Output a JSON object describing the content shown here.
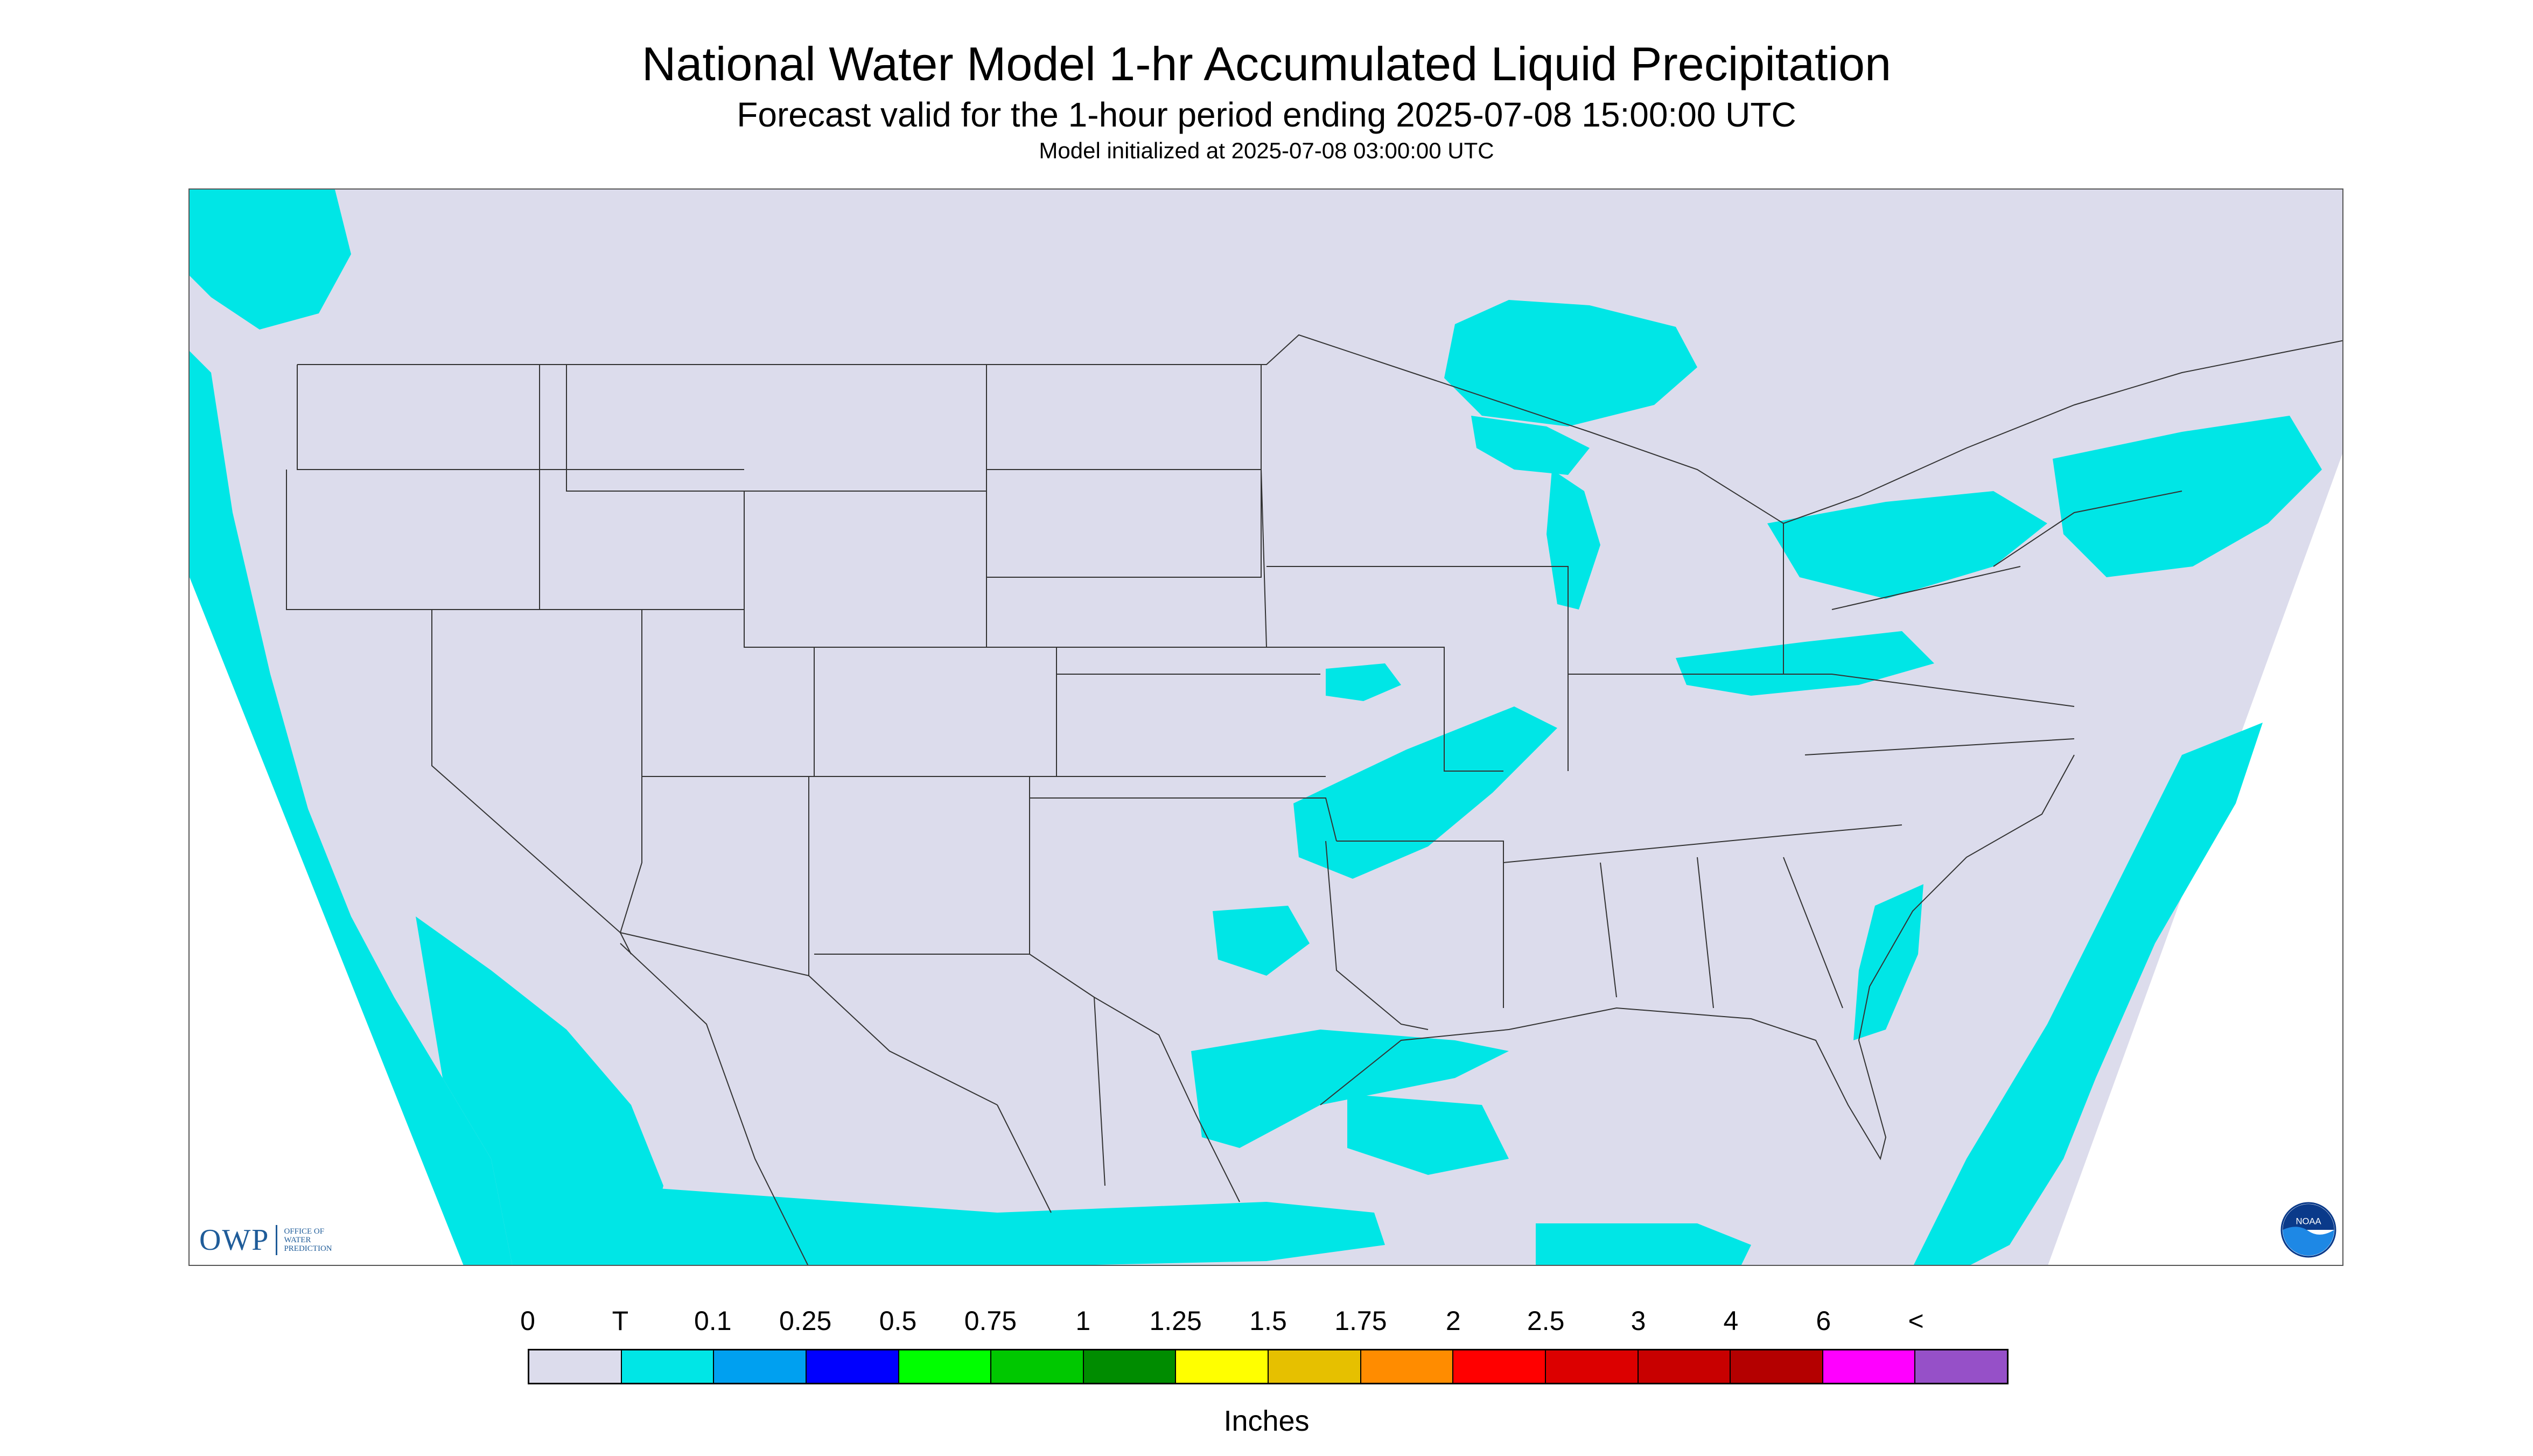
{
  "title": "National Water Model 1-hr Accumulated Liquid Precipitation",
  "subtitle": "Forecast valid for the 1-hour period ending 2025-07-08 15:00:00 UTC",
  "init_text": "Model initialized at 2025-07-08 03:00:00 UTC",
  "logo_left": {
    "text": "OWP",
    "subtitle": "OFFICE OF WATER PREDICTION",
    "color": "#1f5c99"
  },
  "logo_right": {
    "text": "NOAA",
    "icon": "noaa-logo-icon"
  },
  "map": {
    "background_color": "#dcdcec",
    "outside_domain_color": "#ffffff",
    "boundary_color": "#333333"
  },
  "legend": {
    "labels": [
      "0",
      "T",
      "0.1",
      "0.25",
      "0.5",
      "0.75",
      "1",
      "1.25",
      "1.5",
      "1.75",
      "2",
      "2.5",
      "3",
      "4",
      "6",
      "<"
    ],
    "colors": [
      "#dcdcec",
      "#00e6e6",
      "#00a0f0",
      "#0000ff",
      "#00ff00",
      "#00c800",
      "#008c00",
      "#ffff00",
      "#e6c000",
      "#ff8c00",
      "#ff0000",
      "#dc0000",
      "#c80000",
      "#b40000",
      "#ff00ff",
      "#9650c8"
    ],
    "units": "Inches"
  }
}
